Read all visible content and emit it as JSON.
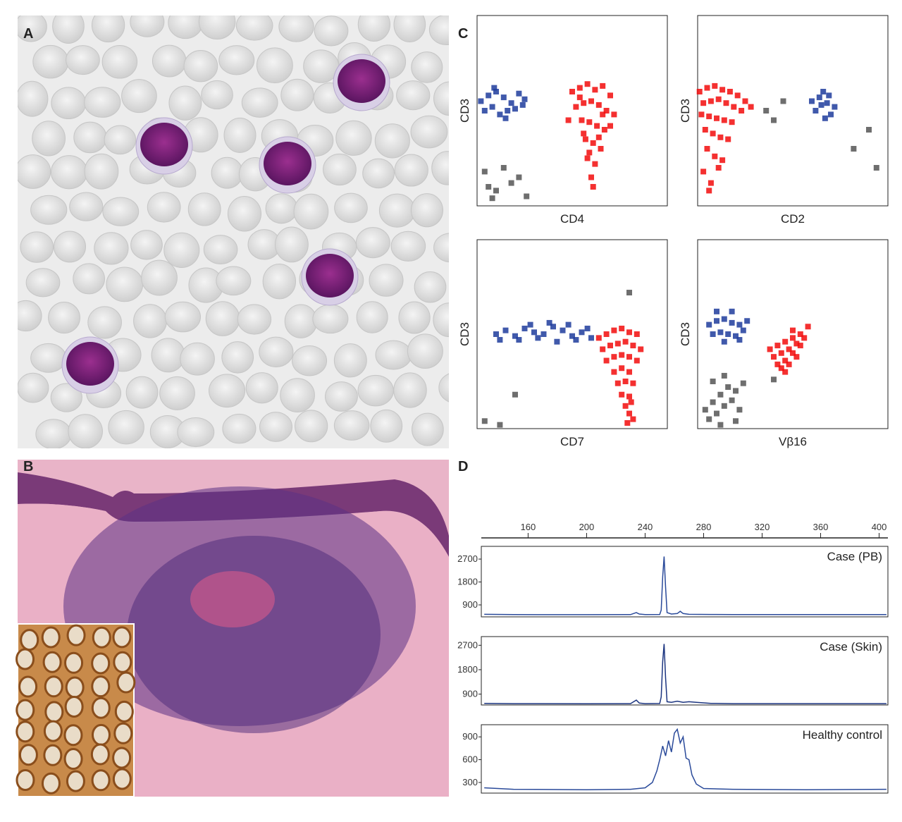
{
  "panels": {
    "a": "A",
    "b": "B",
    "c": "C",
    "d": "D"
  },
  "chart_data": [
    {
      "type": "scatter",
      "x_label": "CD4",
      "y_label": "CD3",
      "xlim": [
        0,
        100
      ],
      "ylim": [
        0,
        100
      ],
      "series": [
        {
          "color": "#1f3c9c",
          "x": [
            2,
            6,
            10,
            14,
            18,
            22,
            25,
            4,
            8,
            12,
            16,
            20,
            24,
            9,
            15
          ],
          "y": [
            55,
            58,
            60,
            57,
            54,
            59,
            56,
            50,
            52,
            48,
            50,
            51,
            53,
            62,
            46
          ]
        },
        {
          "color": "#f20c0c",
          "x": [
            50,
            54,
            58,
            62,
            66,
            70,
            52,
            56,
            60,
            64,
            68,
            72,
            48,
            55,
            59,
            63,
            67,
            57,
            61,
            65,
            58,
            62,
            60,
            56,
            64,
            59,
            61,
            66,
            54,
            70
          ],
          "y": [
            60,
            62,
            64,
            61,
            63,
            58,
            52,
            54,
            55,
            53,
            50,
            48,
            45,
            45,
            44,
            42,
            40,
            35,
            33,
            30,
            25,
            22,
            15,
            38,
            36,
            28,
            10,
            48,
            57,
            42
          ]
        },
        {
          "color": "#555555",
          "x": [
            4,
            10,
            18,
            26,
            8,
            14,
            22,
            6
          ],
          "y": [
            18,
            8,
            12,
            5,
            4,
            20,
            15,
            10
          ]
        }
      ]
    },
    {
      "type": "scatter",
      "x_label": "CD2",
      "y_label": "CD3",
      "xlim": [
        0,
        100
      ],
      "ylim": [
        0,
        100
      ],
      "series": [
        {
          "color": "#1f3c9c",
          "x": [
            60,
            64,
            68,
            72,
            66,
            62,
            70,
            67,
            65,
            69
          ],
          "y": [
            55,
            57,
            54,
            52,
            60,
            50,
            48,
            46,
            53,
            58
          ]
        },
        {
          "color": "#f20c0c",
          "x": [
            1,
            5,
            9,
            13,
            17,
            21,
            25,
            3,
            7,
            11,
            15,
            19,
            23,
            2,
            6,
            10,
            14,
            18,
            4,
            8,
            12,
            16,
            5,
            9,
            13,
            3,
            7,
            11,
            6,
            28
          ],
          "y": [
            60,
            62,
            63,
            61,
            60,
            58,
            55,
            54,
            55,
            56,
            54,
            52,
            50,
            48,
            47,
            46,
            45,
            44,
            40,
            38,
            36,
            35,
            30,
            26,
            24,
            18,
            12,
            20,
            8,
            52
          ]
        },
        {
          "color": "#555555",
          "x": [
            36,
            40,
            45,
            82,
            90,
            94
          ],
          "y": [
            50,
            45,
            55,
            30,
            40,
            20
          ]
        }
      ]
    },
    {
      "type": "scatter",
      "x_label": "CD7",
      "y_label": "CD3",
      "xlim": [
        0,
        100
      ],
      "ylim": [
        0,
        100
      ],
      "series": [
        {
          "color": "#1f3c9c",
          "x": [
            10,
            15,
            20,
            25,
            30,
            35,
            40,
            45,
            50,
            55,
            60,
            12,
            22,
            32,
            42,
            52,
            28,
            38,
            48,
            58
          ],
          "y": [
            50,
            52,
            49,
            53,
            51,
            50,
            54,
            52,
            49,
            51,
            48,
            47,
            47,
            48,
            46,
            47,
            55,
            56,
            55,
            53
          ]
        },
        {
          "color": "#f20c0c",
          "x": [
            64,
            68,
            72,
            76,
            80,
            84,
            66,
            70,
            74,
            78,
            82,
            86,
            68,
            72,
            76,
            80,
            84,
            72,
            76,
            80,
            74,
            78,
            82,
            76,
            80,
            78,
            80,
            82,
            79,
            81
          ],
          "y": [
            48,
            50,
            52,
            53,
            51,
            50,
            42,
            44,
            45,
            46,
            44,
            42,
            36,
            38,
            39,
            38,
            36,
            30,
            32,
            30,
            24,
            25,
            24,
            18,
            17,
            12,
            8,
            5,
            3,
            14
          ]
        },
        {
          "color": "#555555",
          "x": [
            4,
            12,
            20,
            80
          ],
          "y": [
            4,
            2,
            18,
            72
          ]
        }
      ]
    },
    {
      "type": "scatter",
      "x_label": "Vβ16",
      "y_label": "CD3",
      "xlim": [
        0,
        100
      ],
      "ylim": [
        0,
        100
      ],
      "series": [
        {
          "color": "#1f3c9c",
          "x": [
            6,
            10,
            14,
            18,
            22,
            26,
            8,
            12,
            16,
            20,
            24,
            10,
            18,
            14,
            22
          ],
          "y": [
            55,
            57,
            58,
            56,
            55,
            57,
            50,
            51,
            50,
            49,
            52,
            62,
            62,
            46,
            47
          ]
        },
        {
          "color": "#f20c0c",
          "x": [
            38,
            42,
            46,
            50,
            54,
            58,
            40,
            44,
            48,
            52,
            56,
            42,
            46,
            50,
            54,
            44,
            48,
            52,
            46,
            50
          ],
          "y": [
            42,
            44,
            46,
            48,
            50,
            54,
            38,
            40,
            42,
            45,
            48,
            34,
            36,
            40,
            44,
            32,
            34,
            38,
            30,
            52
          ]
        },
        {
          "color": "#555555",
          "x": [
            4,
            8,
            12,
            16,
            20,
            24,
            6,
            10,
            14,
            18,
            22,
            8,
            14,
            20,
            12,
            40
          ],
          "y": [
            10,
            14,
            18,
            22,
            20,
            24,
            5,
            8,
            12,
            15,
            10,
            25,
            28,
            4,
            2,
            26
          ]
        }
      ]
    },
    {
      "type": "line",
      "annotation": "Case (PB)",
      "xlim": [
        128,
        406
      ],
      "xticks": [
        160,
        200,
        240,
        280,
        320,
        360,
        400
      ],
      "ylim": [
        430,
        3200
      ],
      "yticks": [
        2700,
        1800,
        900
      ],
      "x": [
        130,
        150,
        200,
        230,
        234,
        236,
        240,
        250,
        251,
        252,
        253,
        254,
        255,
        258,
        262,
        264,
        266,
        270,
        285,
        300,
        350,
        405
      ],
      "series": [
        {
          "color": "#2a4a9a",
          "values": [
            530,
            520,
            515,
            520,
            600,
            540,
            520,
            525,
            700,
            2000,
            2800,
            1600,
            600,
            540,
            560,
            650,
            560,
            530,
            525,
            520,
            520,
            520
          ]
        }
      ]
    },
    {
      "type": "line",
      "annotation": "Case (Skin)",
      "xlim": [
        128,
        406
      ],
      "ylim": [
        500,
        3020
      ],
      "yticks": [
        2700,
        1800,
        900
      ],
      "x": [
        130,
        150,
        200,
        230,
        234,
        236,
        240,
        250,
        251,
        252,
        253,
        254,
        255,
        258,
        262,
        266,
        270,
        275,
        285,
        300,
        350,
        405
      ],
      "series": [
        {
          "color": "#1c3580",
          "values": [
            560,
            550,
            545,
            550,
            680,
            570,
            550,
            555,
            800,
            2100,
            2750,
            1500,
            620,
            600,
            640,
            600,
            620,
            600,
            560,
            550,
            550,
            550
          ]
        }
      ]
    },
    {
      "type": "line",
      "annotation": "Healthy control",
      "xlim": [
        128,
        406
      ],
      "ylim": [
        160,
        1060
      ],
      "yticks": [
        900,
        600,
        300
      ],
      "x": [
        130,
        150,
        200,
        230,
        240,
        245,
        248,
        250,
        252,
        254,
        256,
        258,
        260,
        262,
        264,
        266,
        268,
        270,
        272,
        275,
        280,
        300,
        350,
        405
      ],
      "series": [
        {
          "color": "#2a4a9a",
          "values": [
            230,
            210,
            205,
            210,
            230,
            300,
            450,
            600,
            780,
            650,
            850,
            700,
            950,
            1000,
            820,
            900,
            620,
            600,
            400,
            280,
            220,
            210,
            205,
            210
          ]
        }
      ]
    }
  ]
}
